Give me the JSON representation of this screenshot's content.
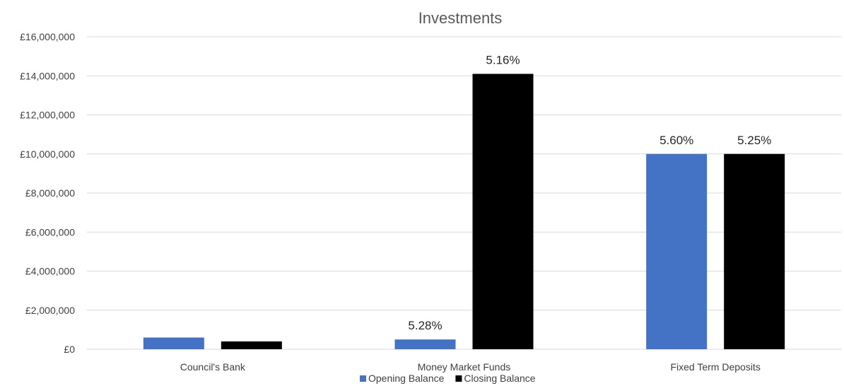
{
  "chart_data": {
    "type": "bar",
    "title": "Investments",
    "xlabel": "",
    "ylabel": "",
    "categories": [
      "Council's Bank",
      "Money Market Funds",
      "Fixed Term Deposits"
    ],
    "series": [
      {
        "name": "Opening Balance",
        "color": "#4472C4",
        "values": [
          600000,
          500000,
          10000000
        ],
        "labels": [
          "",
          "5.28%",
          "5.60%"
        ]
      },
      {
        "name": "Closing Balance",
        "color": "#000000",
        "values": [
          400000,
          14100000,
          10000000
        ],
        "labels": [
          "",
          "5.16%",
          "5.25%"
        ]
      }
    ],
    "ylim": [
      0,
      16000000
    ],
    "yticks": [
      0,
      2000000,
      4000000,
      6000000,
      8000000,
      10000000,
      12000000,
      14000000,
      16000000
    ],
    "ytick_labels": [
      "£0",
      "£2,000,000",
      "£4,000,000",
      "£6,000,000",
      "£8,000,000",
      "£10,000,000",
      "£12,000,000",
      "£14,000,000",
      "£16,000,000"
    ],
    "grid": true,
    "legend_position": "bottom",
    "gridline_color": "#D9D9D9"
  }
}
